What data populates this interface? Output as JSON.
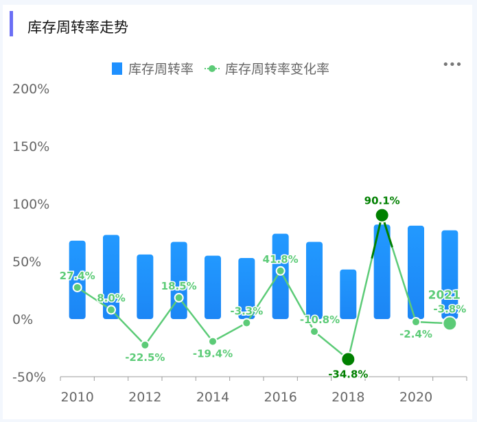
{
  "header": {
    "title": "库存周转率走势"
  },
  "toolbar": {
    "more_label": "•••"
  },
  "chart_data": {
    "type": "bar+line",
    "title": "库存周转率走势",
    "categories": [
      "2010",
      "2011",
      "2012",
      "2013",
      "2014",
      "2015",
      "2016",
      "2017",
      "2018",
      "2019",
      "2020",
      "2021"
    ],
    "x_tick_labels": [
      "2010",
      "2012",
      "2014",
      "2016",
      "2018",
      "2020"
    ],
    "series": [
      {
        "name": "库存周转率",
        "type": "bar",
        "color": "#1e90ff",
        "values": [
          68,
          73,
          56,
          67,
          55,
          53,
          74,
          67,
          43,
          82,
          81,
          77
        ]
      },
      {
        "name": "库存周转率变化率",
        "type": "line",
        "color": "#5ccb77",
        "values": [
          27.4,
          8.0,
          -22.5,
          18.5,
          -19.4,
          -3.3,
          41.8,
          -10.8,
          -34.8,
          90.1,
          -2.4,
          -3.8
        ],
        "labels": [
          "27.4%",
          "8.0%",
          "-22.5%",
          "18.5%",
          "-19.4%",
          "-3.3%",
          "41.8%",
          "-10.8%",
          "-34.8%",
          "90.1%",
          "-2.4%",
          "-3.8%"
        ]
      }
    ],
    "highlight_color": "#008000",
    "last_point_label": "2021",
    "ylim": [
      -50,
      200
    ],
    "y_ticks": [
      -50,
      0,
      50,
      100,
      150,
      200
    ],
    "y_tick_labels": [
      "-50%",
      "0%",
      "50%",
      "100%",
      "150%",
      "200%"
    ],
    "legend_position": "top-center",
    "grid": false
  }
}
